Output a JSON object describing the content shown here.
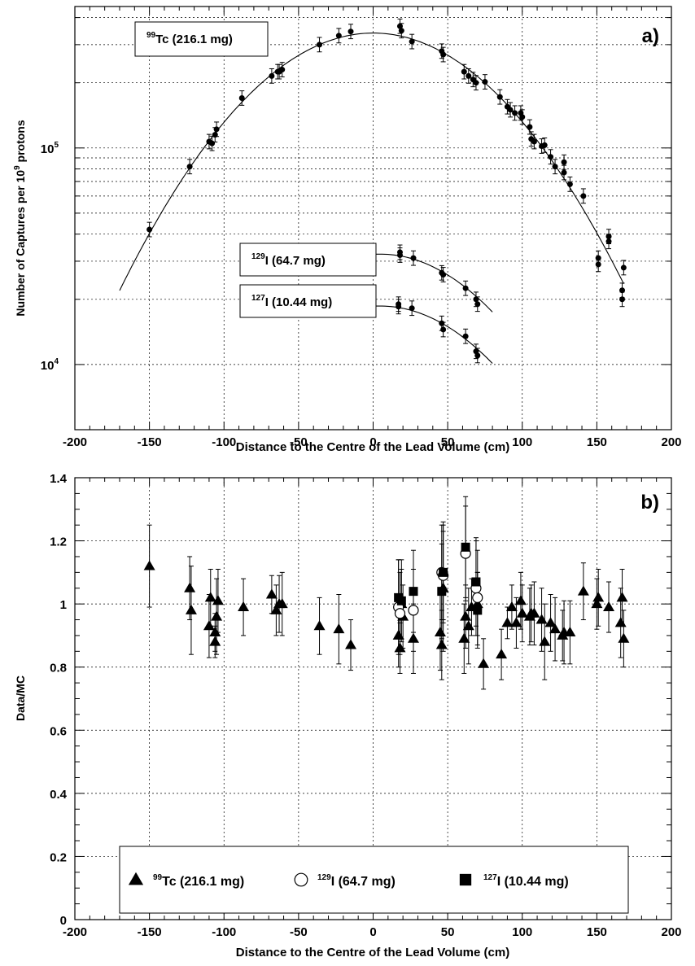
{
  "chart_data": [
    {
      "type": "scatter",
      "panel_label": "a)",
      "xlabel": "Distance to the Centre of the Lead Volume (cm)",
      "ylabel": "Number of Captures per 10^9 protons",
      "xlim": [
        -200,
        200
      ],
      "ylim": [
        5000,
        450000
      ],
      "yscale": "log",
      "x_ticks": [
        "-200",
        "-150",
        "-100",
        "-50",
        "0",
        "50",
        "100",
        "150",
        "200"
      ],
      "y_ticks": [
        "10^4",
        "10^5"
      ],
      "grid": true,
      "series": [
        {
          "name": "99Tc (216.1 mg)",
          "marker": "circle-filled",
          "x": [
            -150,
            -123,
            -110,
            -108,
            -106,
            -105,
            -88,
            -68,
            -64,
            -63,
            -61,
            -36,
            -23,
            -15,
            18,
            19,
            26,
            46,
            47,
            61,
            64,
            67,
            69,
            75,
            85,
            90,
            92,
            95,
            99,
            100,
            105,
            106,
            108,
            113,
            115,
            119,
            122,
            128,
            128,
            132,
            141,
            151,
            151,
            158,
            158,
            167,
            167,
            168
          ],
          "y": [
            42000,
            82000,
            107000,
            105000,
            115000,
            122000,
            170000,
            215000,
            225000,
            225000,
            230000,
            300000,
            330000,
            345000,
            365000,
            348000,
            310000,
            280000,
            270000,
            225000,
            215000,
            207000,
            200000,
            202000,
            172000,
            155000,
            150000,
            145000,
            145000,
            139000,
            125000,
            110000,
            107000,
            102000,
            103000,
            91000,
            82000,
            86000,
            77000,
            68000,
            60000,
            31000,
            29000,
            39000,
            37000,
            22000,
            20000,
            28000
          ],
          "fit_curve": "parabola in log scale, peak near x = 0"
        },
        {
          "name": "129I (64.7 mg)",
          "marker": "circle-filled",
          "x": [
            18,
            18,
            27,
            46,
            47,
            62,
            69,
            70
          ],
          "y": [
            33000,
            32000,
            31000,
            26500,
            26000,
            22500,
            20000,
            19000
          ],
          "fit_curve": "smooth falloff from 18 to 80 cm"
        },
        {
          "name": "127I (10.44 mg)",
          "marker": "circle-filled",
          "x": [
            17,
            17,
            26,
            46,
            47,
            62,
            69,
            70
          ],
          "y": [
            19000,
            18500,
            18200,
            15500,
            14500,
            13500,
            11500,
            11000
          ],
          "fit_curve": "smooth falloff from 18 to 80 cm"
        }
      ],
      "annotations": [
        {
          "isotope_mass": "99",
          "text": "Tc (216.1 mg)"
        },
        {
          "isotope_mass": "129",
          "text": "I (64.7 mg)"
        },
        {
          "isotope_mass": "127",
          "text": "I (10.44 mg)"
        }
      ]
    },
    {
      "type": "scatter",
      "panel_label": "b)",
      "xlabel": "Distance to the Centre of the Lead Volume (cm)",
      "ylabel": "Data/MC",
      "xlim": [
        -200,
        200
      ],
      "ylim": [
        0,
        1.4
      ],
      "x_ticks": [
        "-200",
        "-150",
        "-100",
        "-50",
        "0",
        "50",
        "100",
        "150",
        "200"
      ],
      "y_ticks": [
        "0",
        "0.2",
        "0.4",
        "0.6",
        "0.8",
        "1",
        "1.2",
        "1.4"
      ],
      "grid": true,
      "legend_position": "bottom-center",
      "series": [
        {
          "name": "99Tc (216.1 mg)",
          "marker": "triangle-filled",
          "x": [
            -150,
            -123,
            -122,
            -110,
            -109,
            -106,
            -106,
            -105,
            -104,
            -87,
            -68,
            -65,
            -63,
            -61,
            -36,
            -23,
            -15,
            17,
            18,
            19,
            20,
            27,
            45,
            46,
            47,
            61,
            62,
            64,
            66,
            70,
            74,
            86,
            90,
            93,
            96,
            99,
            100,
            105,
            106,
            108,
            113,
            115,
            119,
            122,
            127,
            128,
            132,
            141,
            150,
            151,
            158,
            166,
            167,
            168
          ],
          "y": [
            1.12,
            1.05,
            0.98,
            0.93,
            1.02,
            0.88,
            0.91,
            0.96,
            1.01,
            0.99,
            1.03,
            0.98,
            1.0,
            1.0,
            0.93,
            0.92,
            0.87,
            0.9,
            0.86,
            1.0,
            0.96,
            0.89,
            0.91,
            0.87,
            1.05,
            0.89,
            0.96,
            0.93,
            0.99,
            1.0,
            0.81,
            0.84,
            0.94,
            0.99,
            0.94,
            1.01,
            0.97,
            0.96,
            0.97,
            0.97,
            0.95,
            0.88,
            0.94,
            0.92,
            0.9,
            0.91,
            0.91,
            1.04,
            1.0,
            1.02,
            0.99,
            0.94,
            1.02,
            0.89
          ],
          "y_err": [
            0.13,
            0.1,
            0.14,
            0.1,
            0.09,
            0.05,
            0.06,
            0.12,
            0.1,
            0.09,
            0.06,
            0.08,
            0.09,
            0.1,
            0.09,
            0.11,
            0.08,
            0.1,
            0.08,
            0.11,
            0.1,
            0.11,
            0.12,
            0.11,
            0.2,
            0.11,
            0.1,
            0.12,
            0.09,
            0.1,
            0.08,
            0.08,
            0.05,
            0.07,
            0.08,
            0.09,
            0.09,
            0.09,
            0.09,
            0.1,
            0.1,
            0.12,
            0.09,
            0.1,
            0.08,
            0.1,
            0.1,
            0.09,
            0.08,
            0.09,
            0.08,
            0.11,
            0.09,
            0.09
          ]
        },
        {
          "name": "129I (64.7 mg)",
          "marker": "circle-open",
          "x": [
            17,
            18,
            27,
            46,
            47,
            62,
            69,
            70
          ],
          "y": [
            0.99,
            0.97,
            0.98,
            1.1,
            1.09,
            1.16,
            1.05,
            1.02
          ],
          "y_err": [
            0.15,
            0.13,
            0.13,
            0.15,
            0.14,
            0.15,
            0.15,
            0.15
          ]
        },
        {
          "name": "127I (10.44 mg)",
          "marker": "square-filled",
          "x": [
            17,
            19,
            27,
            46,
            47,
            62,
            69,
            70
          ],
          "y": [
            1.02,
            1.01,
            1.04,
            1.04,
            1.1,
            1.18,
            1.07,
            0.98
          ],
          "y_err": [
            0.12,
            0.13,
            0.13,
            0.15,
            0.16,
            0.16,
            0.14,
            0.12
          ]
        }
      ],
      "legend": [
        {
          "isotope_mass": "99",
          "text": "Tc (216.1 mg)"
        },
        {
          "isotope_mass": "129",
          "text": "I (64.7 mg)"
        },
        {
          "isotope_mass": "127",
          "text": "I (10.44 mg)"
        }
      ]
    }
  ]
}
